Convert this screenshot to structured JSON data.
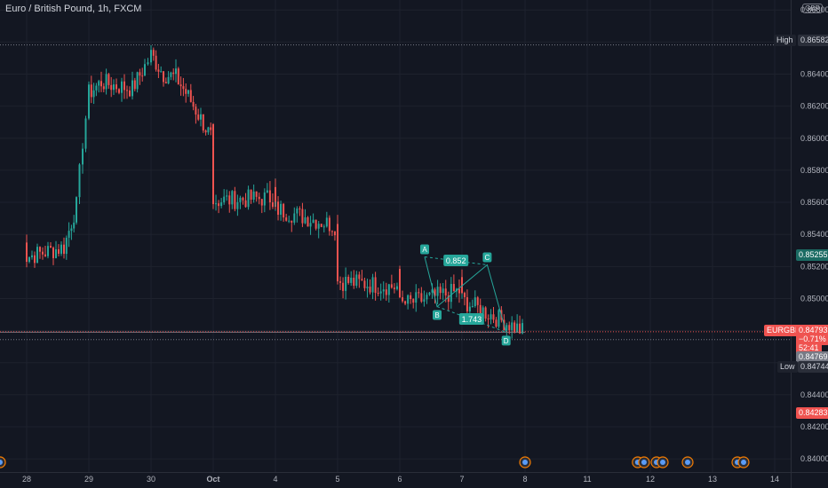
{
  "legend": {
    "title": "Euro / British Pound, 1h, FXCM"
  },
  "currency_badge": "GBP",
  "tags": {
    "high_label": "High",
    "high_value": "0.86582",
    "low_label": "Low",
    "low_value": "0.84744",
    "symbol_label": "EURGBP",
    "symbol_price": "0.84793",
    "symbol_change": "−0.71%",
    "symbol_countdown": "52:41",
    "bid_value": "0.84769",
    "target_value": "0.85255",
    "stop_value": "0.84283"
  },
  "colors": {
    "background": "#131722",
    "up": "#26a69a",
    "down": "#ef5350",
    "grid": "#1e222d",
    "axis_text": "#b2b5be",
    "pattern": "#26a69a",
    "profit_zone": "#1b4a48",
    "loss_zone": "#4a2227"
  },
  "chart_data": {
    "type": "candlestick",
    "title": "Euro / British Pound, 1h, FXCM",
    "y_ticks": [
      0.84,
      0.842,
      0.844,
      0.846,
      0.848,
      0.85,
      0.852,
      0.854,
      0.856,
      0.858,
      0.86,
      0.862,
      0.864,
      0.866,
      0.868
    ],
    "ylim": [
      0.8394,
      0.8684
    ],
    "x_labels": [
      "28",
      "29",
      "30",
      "Oct",
      "4",
      "5",
      "6",
      "7",
      "8",
      "11",
      "12",
      "13",
      "14"
    ],
    "close_path": [
      [
        "28",
        0.8535
      ],
      [
        "28",
        0.8528
      ],
      [
        "28",
        0.8531
      ],
      [
        "28",
        0.8526
      ],
      [
        "28.6",
        0.8532
      ],
      [
        "28.8",
        0.8558
      ],
      [
        "28.9",
        0.8598
      ],
      [
        "29",
        0.8628
      ],
      [
        "29.2",
        0.8635
      ],
      [
        "29.4",
        0.8633
      ],
      [
        "29.7",
        0.8631
      ],
      [
        "29.9",
        0.8645
      ],
      [
        "30",
        0.8652
      ],
      [
        "30.2",
        0.864
      ],
      [
        "30.4",
        0.8638
      ],
      [
        "30.6",
        0.8626
      ],
      [
        "30.8",
        0.8612
      ],
      [
        "Oct",
        0.8598
      ],
      [
        "Oct",
        0.8592
      ],
      [
        "Oct",
        0.8597
      ],
      [
        "Oct",
        0.8604
      ],
      [
        "Oct",
        0.8607
      ],
      [
        "Oct",
        0.8594
      ],
      [
        "Oct",
        0.8574
      ],
      [
        "Oct",
        0.8561
      ],
      [
        "4",
        0.8563
      ],
      [
        "4",
        0.8567
      ],
      [
        "4",
        0.8565
      ],
      [
        "4",
        0.8562
      ],
      [
        "4",
        0.8556
      ],
      [
        "5",
        0.8545
      ],
      [
        "5",
        0.8542
      ],
      [
        "5",
        0.8538
      ],
      [
        "5",
        0.8523
      ],
      [
        "5",
        0.8511
      ],
      [
        "6",
        0.8507
      ],
      [
        "6",
        0.8509
      ],
      [
        "6",
        0.8514
      ],
      [
        "6",
        0.8523
      ],
      [
        "6",
        0.8496
      ],
      [
        "7",
        0.8505
      ],
      [
        "7",
        0.8502
      ],
      [
        "7",
        0.8508
      ],
      [
        "7",
        0.8514
      ],
      [
        "7",
        0.8499
      ],
      [
        "8",
        0.8479
      ]
    ],
    "session_high": 0.86582,
    "session_low": 0.84744,
    "last_price": 0.84793,
    "pattern": {
      "type": "ABCD",
      "points": [
        {
          "label": "A",
          "x": "6.4",
          "y": 0.8526
        },
        {
          "label": "B",
          "x": "6.6",
          "y": 0.8495
        },
        {
          "label": "C",
          "x": "7.4",
          "y": 0.8521
        },
        {
          "label": "D",
          "x": "7.7",
          "y": 0.8479
        }
      ],
      "ratios": [
        {
          "label": "0.852"
        },
        {
          "label": "1.743"
        }
      ]
    },
    "position": {
      "entry": 0.8479,
      "target": 0.85255,
      "stop": 0.84283,
      "x_start": "8",
      "x_end": "9.4"
    },
    "event_markers": [
      "8",
      "10.8",
      "10.9",
      "11.8",
      "11.9",
      "12.1",
      "12.2",
      "12.6",
      "13.4",
      "13.5"
    ]
  }
}
